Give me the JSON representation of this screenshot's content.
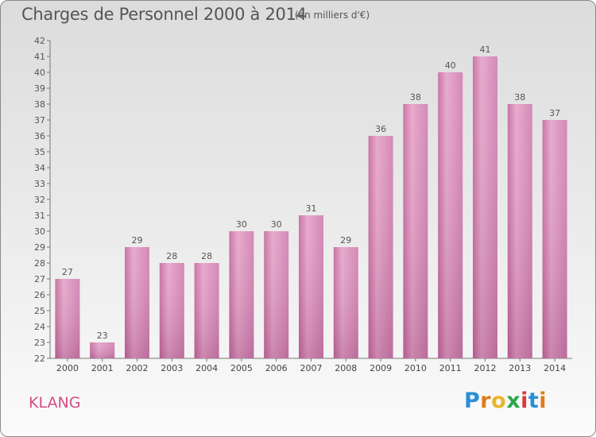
{
  "chart_data": {
    "type": "bar",
    "title": "Charges de Personnel 2000 à 2014",
    "subtitle": "(en milliers d'€)",
    "categories": [
      "2000",
      "2001",
      "2002",
      "2003",
      "2004",
      "2005",
      "2006",
      "2007",
      "2008",
      "2009",
      "2010",
      "2011",
      "2012",
      "2013",
      "2014"
    ],
    "values": [
      27,
      23,
      29,
      28,
      28,
      30,
      30,
      31,
      29,
      36,
      38,
      40,
      41,
      38,
      37
    ],
    "ylim": [
      22,
      42
    ],
    "yticks": [
      22,
      23,
      24,
      25,
      26,
      27,
      28,
      29,
      30,
      31,
      32,
      33,
      34,
      35,
      36,
      37,
      38,
      39,
      40,
      41,
      42
    ],
    "grid": false,
    "bar_color": "#d98cbb"
  },
  "commune": "KLANG",
  "logo": {
    "letters": [
      {
        "char": "P",
        "color": "#2a8fd6"
      },
      {
        "char": "r",
        "color": "#e07b1a"
      },
      {
        "char": "o",
        "color": "#e8b52a"
      },
      {
        "char": "x",
        "color": "#2aa84a"
      },
      {
        "char": "i",
        "color": "#d93a3a"
      },
      {
        "char": "t",
        "color": "#2a8fd6"
      },
      {
        "char": "i",
        "color": "#e07b1a"
      }
    ]
  }
}
